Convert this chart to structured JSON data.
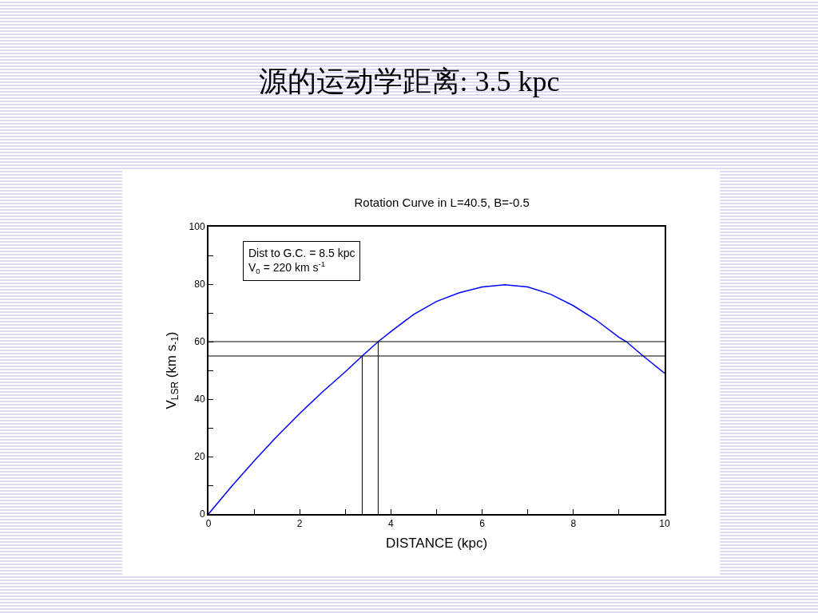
{
  "chart_data": {
    "type": "line",
    "title": "源的运动学距离: 3.5 kpc",
    "subtitle": "Rotation Curve in L=40.5, B=-0.5",
    "xlabel": "DISTANCE (kpc)",
    "ylabel": "V$_{LSR}$ (km s$_{-1}$)",
    "annotations": [
      "Dist to G.C. = 8.5 kpc",
      "V$_{0}$ = 220 km s$^{-1}$"
    ],
    "x": [
      0,
      0.5,
      1,
      1.5,
      2,
      2.5,
      3,
      3.37,
      3.72,
      4,
      4.5,
      5,
      5.5,
      6,
      6.5,
      7,
      7.5,
      8,
      8.5,
      9,
      9.16,
      9.53,
      10
    ],
    "series": [
      {
        "color": "#0000ff",
        "values": [
          0,
          9.5,
          18.5,
          27,
          35,
          42.5,
          49.5,
          55,
          60,
          63.5,
          69.5,
          74,
          77,
          79,
          79.8,
          79,
          76.5,
          72.5,
          67.5,
          61.5,
          60,
          55,
          49
        ]
      }
    ],
    "ref_lines": [
      {
        "axis": "x",
        "value": 3.37,
        "label": null,
        "color": "#000000"
      },
      {
        "axis": "x",
        "value": 3.72,
        "label": null,
        "color": "#000000"
      },
      {
        "axis": "y",
        "value": 60,
        "label": null,
        "color": "#000000"
      },
      {
        "axis": "y",
        "value": 55,
        "label": null,
        "color": "#000000"
      }
    ],
    "xlim": [
      0,
      10
    ],
    "ylim": [
      0,
      100
    ],
    "xticks": [
      0,
      {
        "value": 1,
        "label": null
      },
      2,
      {
        "value": 3,
        "label": null
      },
      4,
      {
        "value": 5,
        "label": null
      },
      6,
      {
        "value": 7,
        "label": null
      },
      8,
      {
        "value": 9,
        "label": null
      },
      10
    ],
    "yticks": [
      0,
      {
        "value": 10,
        "label": null
      },
      20,
      {
        "value": 30,
        "label": null
      },
      40,
      {
        "value": 50,
        "label": null
      },
      60,
      {
        "value": 70,
        "label": null
      },
      80,
      {
        "value": 90,
        "label": null
      },
      100
    ],
    "grid": false,
    "marker": "none",
    "line_style": "solid"
  }
}
